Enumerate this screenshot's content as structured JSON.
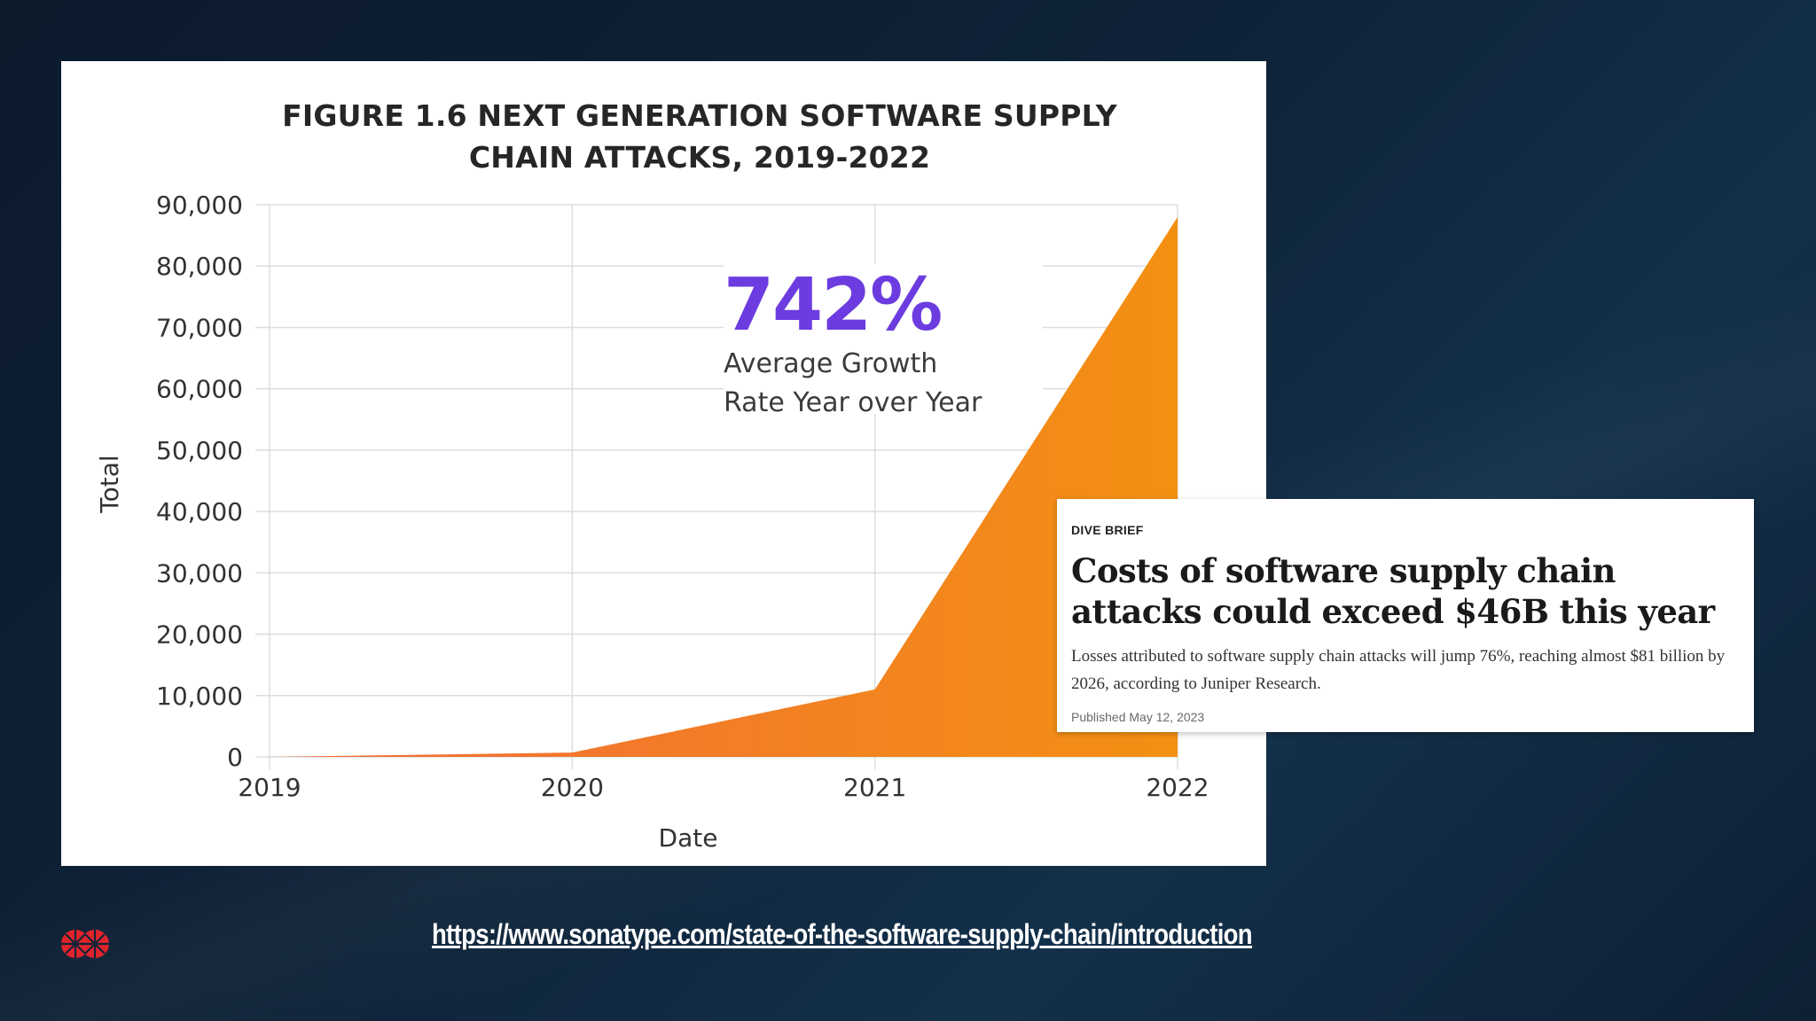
{
  "chart_data": {
    "type": "area",
    "title": "FIGURE 1.6 NEXT GENERATION SOFTWARE SUPPLY CHAIN ATTACKS, 2019-2022",
    "xlabel": "Date",
    "ylabel": "Total",
    "x": [
      "2019",
      "2020",
      "2021",
      "2022"
    ],
    "series": [
      {
        "values": [
          0,
          700,
          11000,
          88000
        ]
      }
    ],
    "ylim": [
      0,
      90000
    ],
    "yticks": [
      "0",
      "10,000",
      "20,000",
      "30,000",
      "40,000",
      "50,000",
      "60,000",
      "70,000",
      "80,000",
      "90,000"
    ],
    "grid": true,
    "fill_gradient": [
      "#f26b3a",
      "#f39012"
    ],
    "annotation": {
      "value": "742%",
      "caption_lines": [
        "Average Growth",
        "Rate Year over Year"
      ],
      "value_color": "#6c3ce0"
    }
  },
  "news_card": {
    "tag": "DIVE BRIEF",
    "headline": "Costs of software supply chain attacks could exceed $46B this year",
    "summary": "Losses attributed to software supply chain attacks will jump 76%, reaching almost $81 billion by 2026, according to Juniper Research.",
    "published": "Published May 12, 2023"
  },
  "footer": {
    "link_text": "https://www.sonatype.com/state-of-the-software-supply-chain/introduction",
    "logo_icon": "pinwheel-logo-icon",
    "logo_color": "#e0242c"
  }
}
